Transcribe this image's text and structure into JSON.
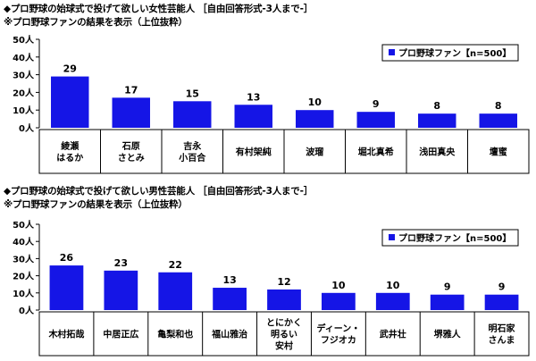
{
  "chart_data": [
    {
      "type": "bar",
      "title": "◆プロ野球の始球式で投げて欲しい女性芸能人 ［自由回答形式-3人まで-］",
      "subtitle": "※プロ野球ファンの結果を表示（上位抜粋）",
      "categories": [
        "綾瀬\nはるか",
        "石原\nさとみ",
        "吉永\n小百合",
        "有村架純",
        "波瑠",
        "堀北真希",
        "浅田真央",
        "壇蜜"
      ],
      "series": [
        {
          "name": "プロ野球ファン【n=500】",
          "values": [
            29,
            17,
            15,
            13,
            10,
            9,
            8,
            8
          ]
        }
      ],
      "y_ticks": [
        "0人",
        "10人",
        "20人",
        "30人",
        "40人",
        "50人"
      ],
      "ylim": [
        0,
        50
      ],
      "grid": false,
      "legend": "top-right",
      "bar_color": "#1515e6"
    },
    {
      "type": "bar",
      "title": "◆プロ野球の始球式で投げて欲しい男性芸能人 ［自由回答形式-3人まで-］",
      "subtitle": "※プロ野球ファンの結果を表示（上位抜粋）",
      "categories": [
        "木村拓哉",
        "中居正広",
        "亀梨和也",
        "福山雅治",
        "とにかく\n明るい\n安村",
        "ディーン・\nフジオカ",
        "武井壮",
        "堺雅人",
        "明石家\nさんま"
      ],
      "series": [
        {
          "name": "プロ野球ファン【n=500】",
          "values": [
            26,
            23,
            22,
            13,
            12,
            10,
            10,
            9,
            9
          ]
        }
      ],
      "y_ticks": [
        "0人",
        "10人",
        "20人",
        "30人",
        "40人",
        "50人"
      ],
      "ylim": [
        0,
        50
      ],
      "grid": false,
      "legend": "top-right",
      "bar_color": "#1515e6"
    }
  ]
}
